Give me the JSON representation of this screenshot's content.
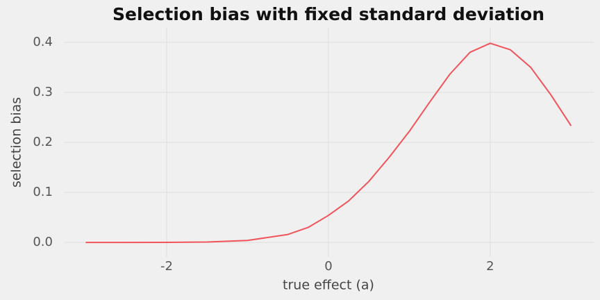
{
  "chart_data": {
    "type": "line",
    "title": "Selection bias with fixed standard deviation",
    "xlabel": "true effect (a)",
    "ylabel": "selection bias",
    "x": [
      -3,
      -2.5,
      -2,
      -1.5,
      -1,
      -0.5,
      -0.25,
      0,
      0.25,
      0.5,
      0.75,
      1,
      1.25,
      1.5,
      1.75,
      2,
      2.25,
      2.5,
      2.75,
      3
    ],
    "series": [
      {
        "color": "#f0545a",
        "values": [
          0,
          0,
          0.0001,
          0.0009,
          0.004,
          0.016,
          0.03,
          0.054,
          0.083,
          0.122,
          0.17,
          0.222,
          0.28,
          0.336,
          0.38,
          0.398,
          0.385,
          0.35,
          0.295,
          0.233
        ]
      }
    ],
    "xlim": [
      -3.27,
      3.28
    ],
    "ylim": [
      -0.029,
      0.429
    ],
    "xticks": [
      -2,
      0,
      2
    ],
    "yticks": [
      {
        "value": 0,
        "label": "0.0"
      },
      0.1,
      0.2,
      0.3,
      0.4
    ],
    "grid": true
  }
}
